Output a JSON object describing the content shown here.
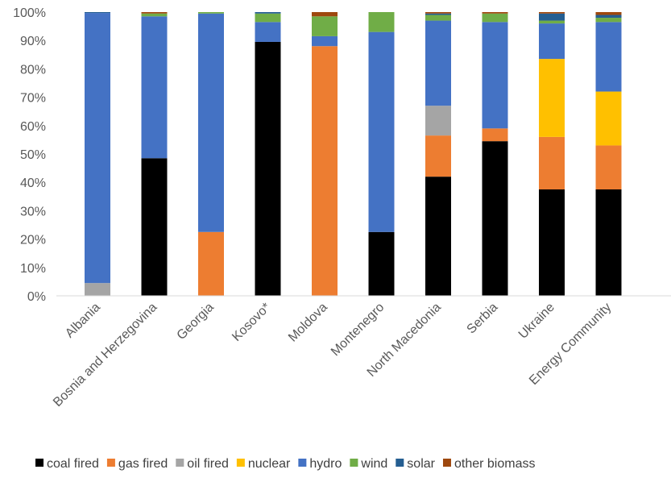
{
  "chart_data": {
    "type": "bar",
    "stacked": true,
    "title": "",
    "xlabel": "",
    "ylabel": "",
    "ylim": [
      0,
      100
    ],
    "y_ticks": [
      "0%",
      "10%",
      "20%",
      "30%",
      "40%",
      "50%",
      "60%",
      "70%",
      "80%",
      "90%",
      "100%"
    ],
    "grid": false,
    "legend_position": "bottom",
    "categories": [
      "Albania",
      "Bosnia and Herzegovina",
      "Georgia",
      "Kosovo*",
      "Moldova",
      "Montenegro",
      "North Macedonia",
      "Serbia",
      "Ukraine",
      "Energy Community"
    ],
    "series": [
      {
        "name": "coal fired",
        "color": "#000000",
        "values": [
          0,
          48.5,
          0,
          89.5,
          0,
          22.5,
          42,
          54.5,
          37.5,
          37.5
        ]
      },
      {
        "name": "gas fired",
        "color": "#ED7D31",
        "values": [
          0,
          0,
          22.5,
          0,
          88,
          0,
          14.5,
          4.5,
          18.5,
          15.5
        ]
      },
      {
        "name": "oil fired",
        "color": "#A5A5A5",
        "values": [
          4.5,
          0,
          0,
          0,
          0,
          0,
          10.5,
          0,
          0,
          0
        ]
      },
      {
        "name": "nuclear",
        "color": "#FFC000",
        "values": [
          0,
          0,
          0,
          0,
          0,
          0,
          0,
          0,
          27.5,
          19
        ]
      },
      {
        "name": "hydro",
        "color": "#4472C4",
        "values": [
          95.2,
          50,
          77,
          7,
          3.5,
          70.5,
          30,
          37.5,
          12.5,
          24.5
        ]
      },
      {
        "name": "wind",
        "color": "#70AD47",
        "values": [
          0,
          1,
          0.5,
          3,
          7,
          7,
          2,
          3,
          1,
          1.5
        ]
      },
      {
        "name": "solar",
        "color": "#255E91",
        "values": [
          0.3,
          0,
          0,
          0.5,
          0,
          0,
          0.5,
          0,
          2.5,
          1
        ]
      },
      {
        "name": "other biomass",
        "color": "#9E480E",
        "values": [
          0,
          0.5,
          0,
          0,
          1.5,
          0,
          0.5,
          0.5,
          0.5,
          1
        ]
      }
    ]
  }
}
